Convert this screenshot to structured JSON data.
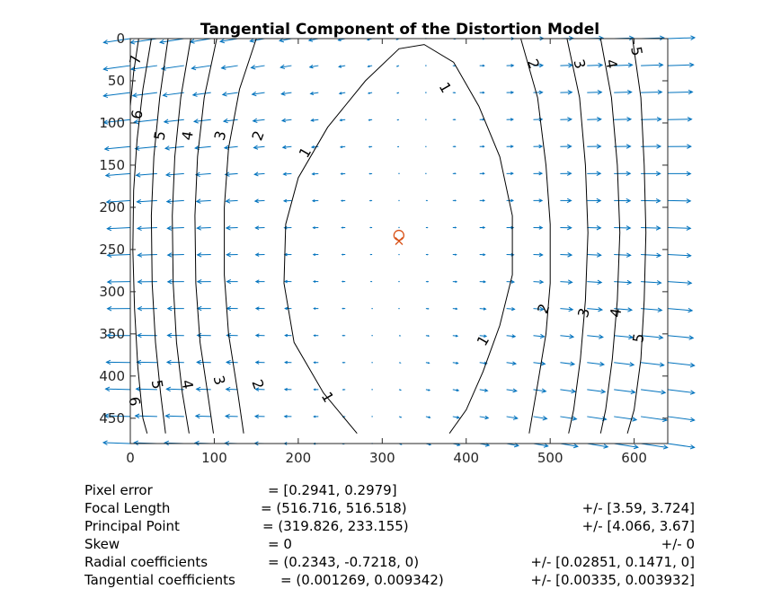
{
  "chart_data": {
    "type": "quiver-contour",
    "title": "Tangential Component of the Distortion Model",
    "xlabel": "",
    "ylabel": "",
    "xlim": [
      0,
      640
    ],
    "ylim": [
      0,
      480
    ],
    "y_reversed": true,
    "x_ticks": [
      0,
      100,
      200,
      300,
      400,
      500,
      600
    ],
    "y_ticks": [
      0,
      50,
      100,
      150,
      200,
      250,
      300,
      350,
      400,
      450
    ],
    "principal_point": [
      319.826,
      233.155
    ],
    "image_center": [
      320,
      240
    ],
    "grid_step": 32,
    "contour_levels": [
      1,
      2,
      3,
      4,
      5,
      6,
      7
    ],
    "contours": [
      {
        "level": 1,
        "points": [
          [
            270,
            468
          ],
          [
            230,
            420
          ],
          [
            195,
            360
          ],
          [
            183,
            290
          ],
          [
            185,
            220
          ],
          [
            200,
            165
          ],
          [
            235,
            105
          ],
          [
            280,
            50
          ],
          [
            320,
            12
          ],
          [
            350,
            7
          ],
          [
            385,
            28
          ],
          [
            415,
            80
          ],
          [
            440,
            140
          ],
          [
            455,
            210
          ],
          [
            455,
            280
          ],
          [
            440,
            340
          ],
          [
            420,
            395
          ],
          [
            400,
            440
          ],
          [
            380,
            468
          ]
        ]
      },
      {
        "level": 2,
        "points": [
          [
            150,
            0
          ],
          [
            130,
            60
          ],
          [
            117,
            130
          ],
          [
            112,
            200
          ],
          [
            112,
            280
          ],
          [
            117,
            350
          ],
          [
            128,
            420
          ],
          [
            135,
            468
          ]
        ]
      },
      {
        "level": 2,
        "points": [
          [
            465,
            0
          ],
          [
            485,
            70
          ],
          [
            495,
            150
          ],
          [
            500,
            220
          ],
          [
            500,
            290
          ],
          [
            495,
            350
          ],
          [
            485,
            410
          ],
          [
            475,
            468
          ]
        ]
      },
      {
        "level": 3,
        "points": [
          [
            103,
            0
          ],
          [
            88,
            70
          ],
          [
            80,
            140
          ],
          [
            77,
            210
          ],
          [
            78,
            290
          ],
          [
            83,
            360
          ],
          [
            92,
            420
          ],
          [
            99,
            468
          ]
        ]
      },
      {
        "level": 3,
        "points": [
          [
            520,
            0
          ],
          [
            535,
            70
          ],
          [
            542,
            150
          ],
          [
            545,
            230
          ],
          [
            542,
            310
          ],
          [
            536,
            380
          ],
          [
            528,
            440
          ],
          [
            522,
            468
          ]
        ]
      },
      {
        "level": 4,
        "points": [
          [
            72,
            0
          ],
          [
            60,
            70
          ],
          [
            53,
            140
          ],
          [
            50,
            210
          ],
          [
            51,
            290
          ],
          [
            55,
            360
          ],
          [
            62,
            420
          ],
          [
            70,
            468
          ]
        ]
      },
      {
        "level": 4,
        "points": [
          [
            560,
            0
          ],
          [
            573,
            70
          ],
          [
            580,
            150
          ],
          [
            583,
            230
          ],
          [
            580,
            310
          ],
          [
            574,
            380
          ],
          [
            566,
            440
          ],
          [
            560,
            468
          ]
        ]
      },
      {
        "level": 5,
        "points": [
          [
            45,
            0
          ],
          [
            35,
            70
          ],
          [
            28,
            140
          ],
          [
            25,
            210
          ],
          [
            26,
            290
          ],
          [
            30,
            360
          ],
          [
            36,
            420
          ],
          [
            42,
            468
          ]
        ]
      },
      {
        "level": 5,
        "points": [
          [
            598,
            0
          ],
          [
            608,
            70
          ],
          [
            612,
            150
          ],
          [
            614,
            230
          ],
          [
            612,
            310
          ],
          [
            608,
            380
          ],
          [
            600,
            440
          ],
          [
            592,
            468
          ]
        ]
      },
      {
        "level": 6,
        "points": [
          [
            25,
            0
          ],
          [
            15,
            60
          ],
          [
            8,
            120
          ],
          [
            4,
            180
          ],
          [
            3,
            250
          ],
          [
            5,
            320
          ],
          [
            9,
            390
          ],
          [
            15,
            450
          ],
          [
            20,
            468
          ]
        ]
      },
      {
        "level": 7,
        "points": [
          [
            10,
            0
          ],
          [
            4,
            40
          ],
          [
            0,
            80
          ]
        ]
      }
    ],
    "contour_labels": [
      {
        "text": "1",
        "x": 375,
        "y": 58,
        "angle": 60
      },
      {
        "text": "1",
        "x": 208,
        "y": 135,
        "angle": -60
      },
      {
        "text": "1",
        "x": 420,
        "y": 358,
        "angle": -60
      },
      {
        "text": "1",
        "x": 235,
        "y": 425,
        "angle": 60
      },
      {
        "text": "2",
        "x": 480,
        "y": 30,
        "angle": 70
      },
      {
        "text": "2",
        "x": 152,
        "y": 115,
        "angle": -70
      },
      {
        "text": "2",
        "x": 492,
        "y": 320,
        "angle": -70
      },
      {
        "text": "2",
        "x": 152,
        "y": 410,
        "angle": 70
      },
      {
        "text": "3",
        "x": 535,
        "y": 30,
        "angle": 75
      },
      {
        "text": "3",
        "x": 107,
        "y": 115,
        "angle": -75
      },
      {
        "text": "3",
        "x": 540,
        "y": 325,
        "angle": -75
      },
      {
        "text": "3",
        "x": 106,
        "y": 405,
        "angle": 75
      },
      {
        "text": "4",
        "x": 573,
        "y": 30,
        "angle": 80
      },
      {
        "text": "4",
        "x": 68,
        "y": 115,
        "angle": -80
      },
      {
        "text": "4",
        "x": 578,
        "y": 325,
        "angle": -80
      },
      {
        "text": "4",
        "x": 68,
        "y": 410,
        "angle": 80
      },
      {
        "text": "5",
        "x": 603,
        "y": 15,
        "angle": 80
      },
      {
        "text": "5",
        "x": 35,
        "y": 115,
        "angle": -80
      },
      {
        "text": "5",
        "x": 605,
        "y": 355,
        "angle": -80
      },
      {
        "text": "5",
        "x": 32,
        "y": 410,
        "angle": 80
      },
      {
        "text": "6",
        "x": 8,
        "y": 90,
        "angle": -80
      },
      {
        "text": "6",
        "x": 5,
        "y": 430,
        "angle": 80
      },
      {
        "text": "7",
        "x": 6,
        "y": 25,
        "angle": -80
      }
    ],
    "colors": {
      "arrows": "#0072BD",
      "markers": "#D95319",
      "contours": "#000000"
    }
  },
  "calibration": {
    "rows": [
      {
        "label": "Pixel error",
        "value": "= [0.2941, 0.2979]",
        "err": ""
      },
      {
        "label": "Focal Length",
        "value": "= (516.716, 516.518)",
        "err": "+/- [3.59, 3.724]"
      },
      {
        "label": "Principal Point",
        "value": "= (319.826, 233.155)",
        "err": "+/- [4.066, 3.67]"
      },
      {
        "label": "Skew",
        "value": "= 0",
        "err": "+/- 0"
      },
      {
        "label": "Radial coefficients",
        "value": "= (0.2343, -0.7218, 0)",
        "err": "+/- [0.02851, 0.1471, 0]"
      },
      {
        "label": "Tangential coefficients",
        "value": "= (0.001269, 0.009342)",
        "err": "+/- [0.00335, 0.003932]"
      }
    ]
  }
}
